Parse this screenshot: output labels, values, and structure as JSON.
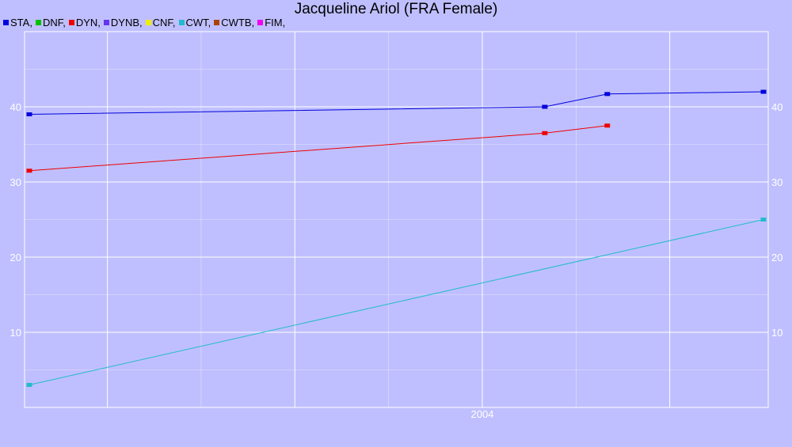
{
  "title": "Jacqueline Ariol (FRA Female)",
  "legend": [
    {
      "label": "STA,",
      "color": "#0000dd"
    },
    {
      "label": "DNF,",
      "color": "#00c000"
    },
    {
      "label": "DYN,",
      "color": "#ee0000"
    },
    {
      "label": "DYNB,",
      "color": "#6633ee"
    },
    {
      "label": "CNF,",
      "color": "#eeee00"
    },
    {
      "label": "CWT,",
      "color": "#22bbcc"
    },
    {
      "label": "CWTB,",
      "color": "#aa4400"
    },
    {
      "label": "FIM,",
      "color": "#ee00ee"
    }
  ],
  "chart_data": {
    "type": "line",
    "title": "Jacqueline Ariol (FRA Female)",
    "x_ticks": [
      "2004"
    ],
    "y_ticks": [
      "10",
      "20",
      "30",
      "40"
    ],
    "xlim": [
      "2001-08",
      "2005-07"
    ],
    "ylim": [
      0,
      50
    ],
    "grid": true,
    "legend_position": "top-left",
    "series": [
      {
        "name": "STA",
        "color": "#0000dd",
        "points": [
          {
            "x": "2001-08",
            "y": 39.0
          },
          {
            "x": "2004-05",
            "y": 40.0
          },
          {
            "x": "2004-09",
            "y": 41.7
          },
          {
            "x": "2005-07",
            "y": 42.0
          }
        ]
      },
      {
        "name": "DYN",
        "color": "#ee0000",
        "points": [
          {
            "x": "2001-08",
            "y": 31.5
          },
          {
            "x": "2004-05",
            "y": 36.5
          },
          {
            "x": "2004-09",
            "y": 37.5
          }
        ]
      },
      {
        "name": "CWT",
        "color": "#22bbcc",
        "points": [
          {
            "x": "2001-08",
            "y": 3.0
          },
          {
            "x": "2005-07",
            "y": 25.0
          }
        ]
      }
    ]
  }
}
